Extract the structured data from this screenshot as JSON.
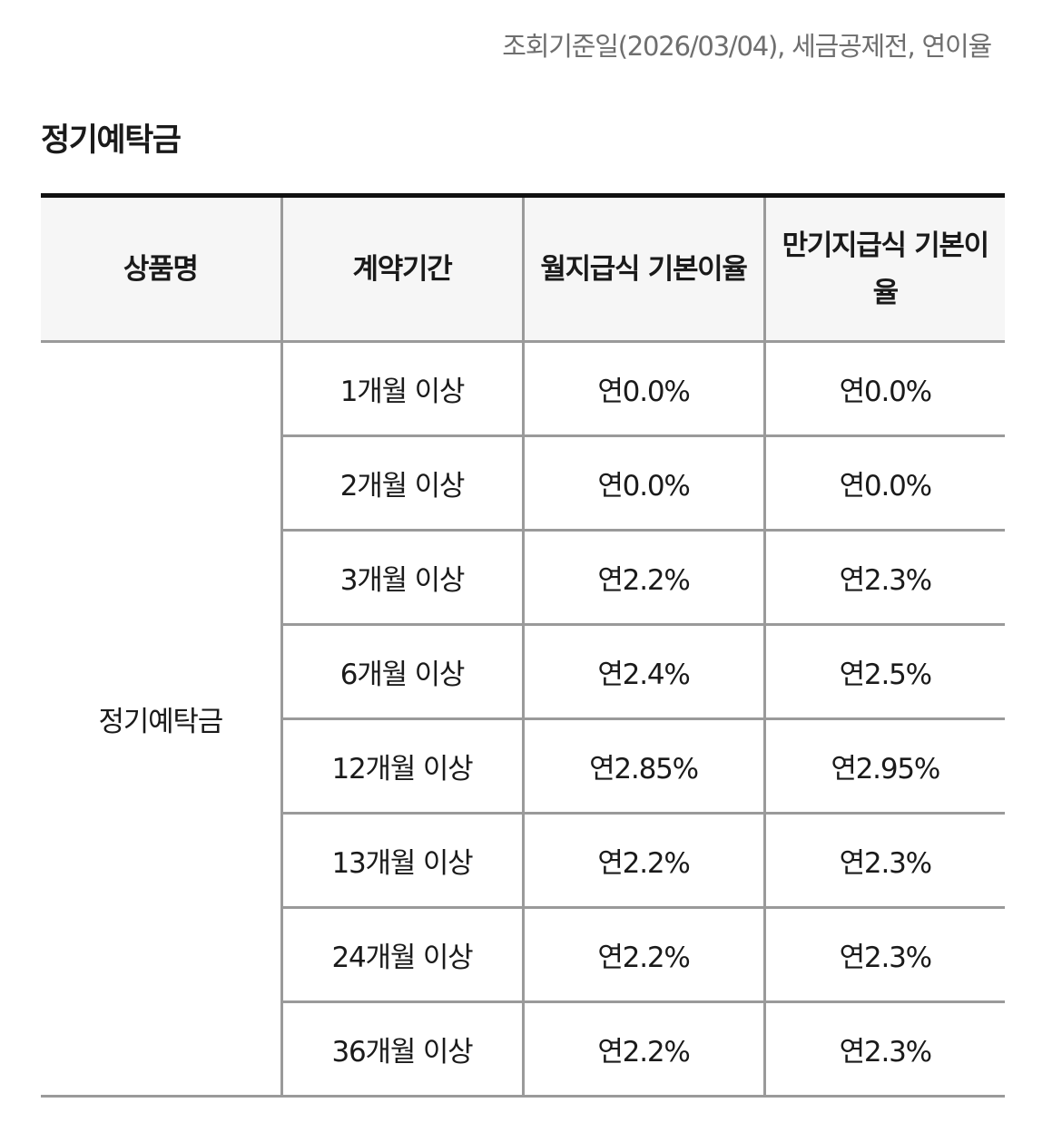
{
  "meta_note": "조회기준일(2026/03/04), 세금공제전, 연이율",
  "section_title": "정기예탁금",
  "table": {
    "headers": [
      "상품명",
      "계약기간",
      "월지급식 기본이율",
      "만기지급식 기본이율"
    ],
    "product_name": "정기예탁금",
    "rows": [
      {
        "period": "1개월 이상",
        "monthly_rate": "연0.0%",
        "maturity_rate": "연0.0%"
      },
      {
        "period": "2개월 이상",
        "monthly_rate": "연0.0%",
        "maturity_rate": "연0.0%"
      },
      {
        "period": "3개월 이상",
        "monthly_rate": "연2.2%",
        "maturity_rate": "연2.3%"
      },
      {
        "period": "6개월 이상",
        "monthly_rate": "연2.4%",
        "maturity_rate": "연2.5%"
      },
      {
        "period": "12개월 이상",
        "monthly_rate": "연2.85%",
        "maturity_rate": "연2.95%"
      },
      {
        "period": "13개월 이상",
        "monthly_rate": "연2.2%",
        "maturity_rate": "연2.3%"
      },
      {
        "period": "24개월 이상",
        "monthly_rate": "연2.2%",
        "maturity_rate": "연2.3%"
      },
      {
        "period": "36개월 이상",
        "monthly_rate": "연2.2%",
        "maturity_rate": "연2.3%"
      }
    ]
  }
}
